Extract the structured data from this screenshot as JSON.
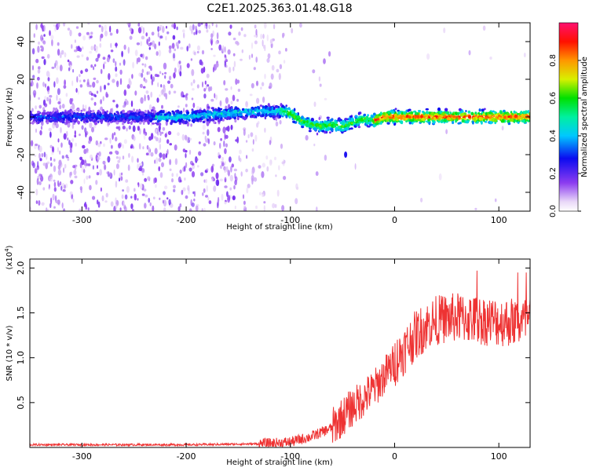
{
  "title": "C2E1.2025.363.01.48.G18",
  "chart_data": [
    {
      "type": "heatmap",
      "name": "spectrogram",
      "xlabel": "Height of straight line (km)",
      "ylabel": "Frequency (Hz)",
      "xlim": [
        -350,
        130
      ],
      "ylim": [
        -50,
        50
      ],
      "xticks": [
        -300,
        -200,
        -100,
        0,
        100
      ],
      "yticks": [
        -40,
        -20,
        0,
        20,
        40
      ],
      "colorbar": {
        "label": "Normalized spectral amplitude",
        "range": [
          0,
          1
        ],
        "ticks": [
          "0.0",
          "0.2",
          "0.4",
          "0.6",
          "0.8"
        ]
      },
      "ridge": [
        [
          -345,
          0
        ],
        [
          -300,
          0
        ],
        [
          -250,
          0
        ],
        [
          -200,
          0
        ],
        [
          -160,
          2
        ],
        [
          -130,
          3
        ],
        [
          -110,
          3
        ],
        [
          -100,
          2
        ],
        [
          -90,
          -2
        ],
        [
          -80,
          -4
        ],
        [
          -70,
          -5
        ],
        [
          -60,
          -4
        ],
        [
          -50,
          -5
        ],
        [
          -40,
          -3
        ],
        [
          -30,
          -1
        ],
        [
          -20,
          -2
        ],
        [
          -10,
          0
        ],
        [
          0,
          0
        ],
        [
          50,
          0
        ],
        [
          100,
          0
        ],
        [
          130,
          0
        ]
      ]
    },
    {
      "type": "line",
      "name": "snr",
      "xlabel": "Height of straight line (km)",
      "ylabel": "SNR (10 * v/v)",
      "scale_label": "(x10",
      "scale_exp": "4",
      "xlim": [
        -350,
        130
      ],
      "ylim": [
        0,
        2.1
      ],
      "xticks": [
        -300,
        -200,
        -100,
        0,
        100
      ],
      "yticks": [
        "0.5",
        "1.0",
        "1.5",
        "2.0"
      ],
      "color": "#ee3333",
      "profile": [
        [
          -350,
          0.03
        ],
        [
          -200,
          0.03
        ],
        [
          -130,
          0.04
        ],
        [
          -110,
          0.05
        ],
        [
          -100,
          0.06
        ],
        [
          -80,
          0.12
        ],
        [
          -60,
          0.22
        ],
        [
          -45,
          0.4
        ],
        [
          -30,
          0.55
        ],
        [
          -20,
          0.65
        ],
        [
          -10,
          0.8
        ],
        [
          0,
          0.95
        ],
        [
          10,
          1.1
        ],
        [
          20,
          1.25
        ],
        [
          30,
          1.35
        ],
        [
          40,
          1.42
        ],
        [
          60,
          1.45
        ],
        [
          80,
          1.42
        ],
        [
          100,
          1.4
        ],
        [
          130,
          1.4
        ]
      ]
    }
  ]
}
